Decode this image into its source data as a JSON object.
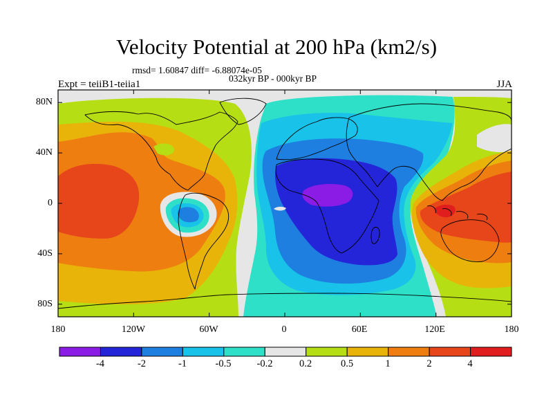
{
  "header": {
    "title": "Velocity Potential at 200 hPa (km2/s)",
    "stats": "rmsd= 1.60847 diff= -6.88074e-05",
    "period": "032kyr BP - 000kyr BP",
    "experiment": "Expt = teiiB1-teiia1",
    "season": "JJA"
  },
  "axes": {
    "lat_labels": [
      "80N",
      "40N",
      "0",
      "40S",
      "80S"
    ],
    "lat_values": [
      80,
      40,
      0,
      -40,
      -80
    ],
    "lon_labels": [
      "180",
      "120W",
      "60W",
      "0",
      "60E",
      "120E",
      "180"
    ],
    "lon_values": [
      -180,
      -120,
      -60,
      0,
      60,
      120,
      180
    ]
  },
  "colorbar": {
    "labels": [
      "-4",
      "-2",
      "-1",
      "-0.5",
      "-0.2",
      "0.2",
      "0.5",
      "1",
      "2",
      "4"
    ],
    "colors": [
      "#8a1ce6",
      "#2424d8",
      "#1e7fe0",
      "#18c2e8",
      "#2fe0c8",
      "#e6e6e6",
      "#b6de14",
      "#e8b40a",
      "#ee7e10",
      "#e6461a",
      "#e01e1e"
    ]
  }
}
